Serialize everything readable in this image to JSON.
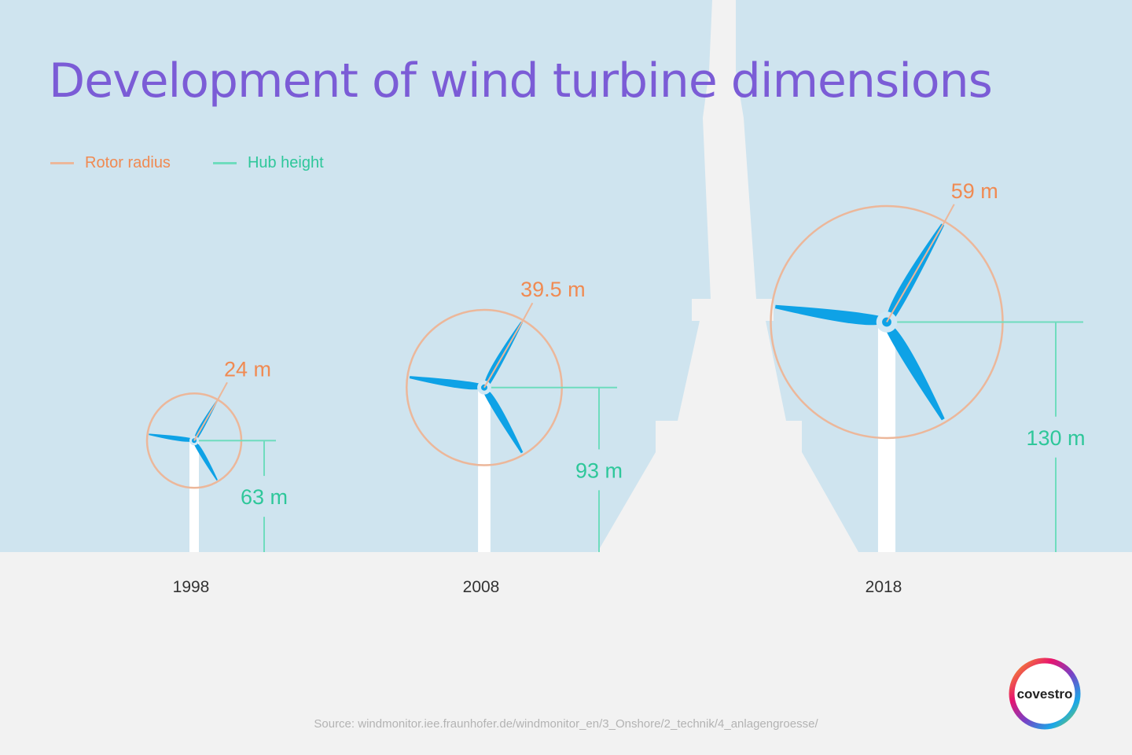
{
  "title": "Development of wind turbine dimensions",
  "legend": {
    "rotor_radius": "Rotor radius",
    "hub_height": "Hub height"
  },
  "colors": {
    "sky": "#cfe4ef",
    "ground": "#f2f2f2",
    "tower_silhouette": "#f2f2f2",
    "title": "#7b5cd6",
    "rotor": "#f08a52",
    "rotor_circle": "#ecb79a",
    "hub": "#2ec79a",
    "hub_line": "#6fdcbe",
    "blade": "#0ea2e6",
    "mast": "#ffffff",
    "year_text": "#333333"
  },
  "chart_data": {
    "type": "pictogram",
    "title": "Development of wind turbine dimensions",
    "series": [
      {
        "name": "Rotor radius",
        "unit": "m",
        "values": [
          24,
          39.5,
          59
        ]
      },
      {
        "name": "Hub height",
        "unit": "m",
        "values": [
          63,
          93,
          130
        ]
      }
    ],
    "categories": [
      "1998",
      "2008",
      "2018"
    ],
    "items": [
      {
        "year": "1998",
        "rotor_radius": 24,
        "rotor_label": "24 m",
        "hub_height": 63,
        "hub_label": "63 m"
      },
      {
        "year": "2008",
        "rotor_radius": 39.5,
        "rotor_label": "39.5 m",
        "hub_height": 93,
        "hub_label": "93 m"
      },
      {
        "year": "2018",
        "rotor_radius": 59,
        "rotor_label": "59 m",
        "hub_height": 130,
        "hub_label": "130 m"
      }
    ]
  },
  "source": "Source: windmonitor.iee.fraunhofer.de/windmonitor_en/3_Onshore/2_technik/4_anlagengroesse/",
  "logo_text": "covestro"
}
